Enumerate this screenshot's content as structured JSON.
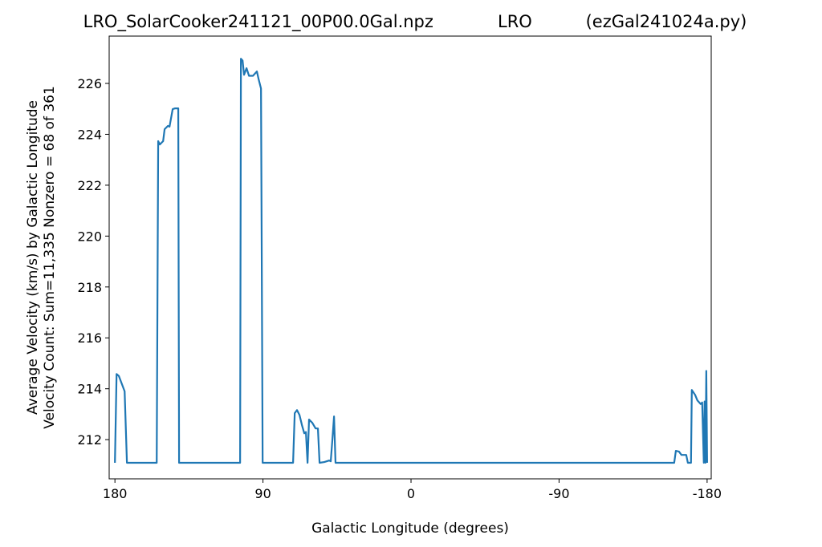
{
  "chart_data": {
    "type": "line",
    "title": "LRO_SolarCooker241121_00P00.0Gal.npz            LRO          (ezGal241024a.py)",
    "xlabel": "Galactic Longitude (degrees)",
    "ylabel": [
      "Average Velocity (km/s) by Galactic Longitude",
      "Velocity Count: Sum=11,335 Nonzero = 68 of 361"
    ],
    "color": "#1f77b4",
    "x": [
      180,
      179,
      177.6,
      174.1,
      172.7,
      154.6,
      153.7,
      152.7,
      150.7,
      149.8,
      147.8,
      146.8,
      144.9,
      143.4,
      141.5,
      141,
      103.9,
      103.4,
      102.4,
      101.5,
      100,
      98.5,
      96.1,
      93.7,
      92.7,
      91.2,
      90.2,
      71.7,
      70.7,
      69.3,
      67.8,
      66.3,
      64.9,
      63.9,
      62.9,
      62,
      60,
      58,
      56.6,
      55.6,
      52.7,
      49.8,
      48.8,
      47.8,
      46.8,
      45.9,
      -160,
      -161,
      -162.9,
      -164.4,
      -167.3,
      -168.3,
      -170.2,
      -170.7,
      -172.7,
      -174.1,
      -176.1,
      -177,
      -178,
      -178.5,
      -179,
      -179.5,
      -180
    ],
    "values": [
      211.09,
      214.58,
      214.5,
      213.9,
      211.09,
      211.09,
      223.73,
      223.6,
      223.73,
      224.2,
      224.33,
      224.3,
      224.99,
      225.02,
      225.02,
      211.09,
      211.09,
      226.97,
      226.9,
      226.34,
      226.6,
      226.3,
      226.3,
      226.47,
      226.18,
      225.8,
      211.09,
      211.09,
      213.04,
      213.16,
      212.97,
      212.57,
      212.25,
      212.3,
      211.09,
      212.79,
      212.66,
      212.44,
      212.44,
      211.09,
      211.12,
      211.18,
      211.15,
      212.0,
      212.91,
      211.09,
      211.09,
      211.56,
      211.53,
      211.4,
      211.4,
      211.09,
      211.09,
      213.95,
      213.76,
      213.54,
      213.4,
      213.46,
      211.09,
      213.5,
      211.09,
      214.7,
      211.09
    ],
    "xlim": [
      183.5,
      -182.5
    ],
    "ylim": [
      210.46,
      227.86
    ],
    "xticks": [
      180,
      90,
      0,
      -90,
      -180
    ],
    "yticks": [
      212,
      214,
      216,
      218,
      220,
      222,
      224,
      226
    ]
  }
}
